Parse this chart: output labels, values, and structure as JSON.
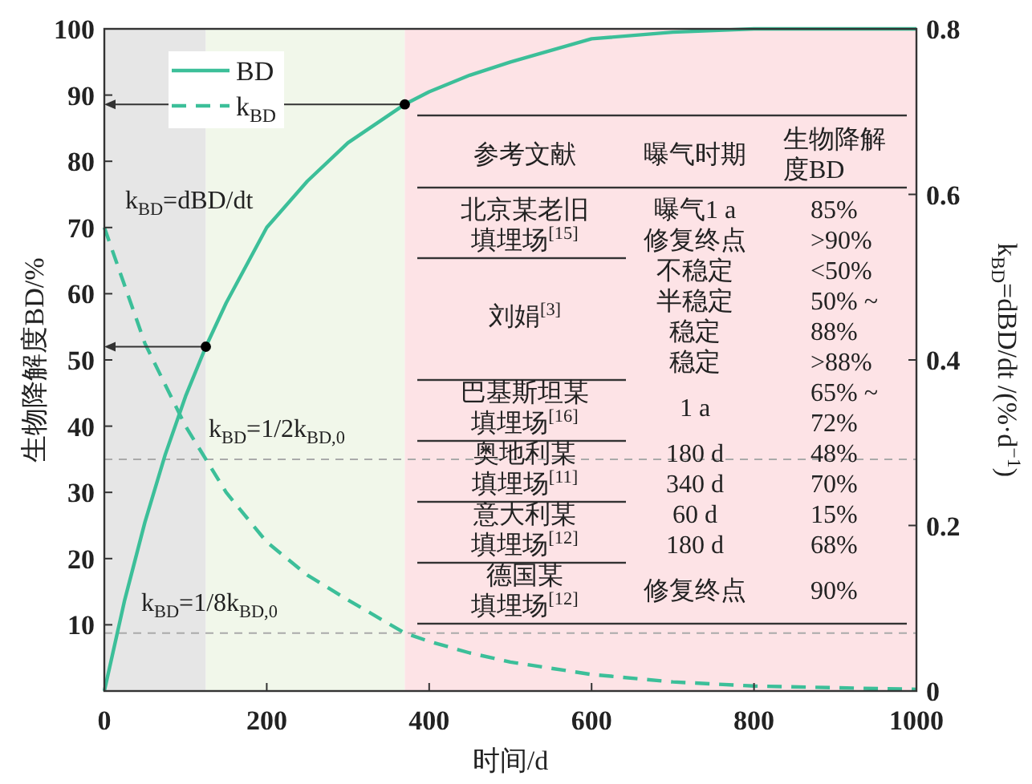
{
  "chart_data": {
    "type": "line",
    "xlabel": "时间/d",
    "ylabel": "生物降解度BD/%",
    "y2label": "k$_{BD}$=dBD/dt /(%·d$^{−1}$)",
    "x": [
      0,
      25,
      50,
      75,
      100,
      125,
      150,
      200,
      250,
      300,
      370,
      400,
      450,
      500,
      600,
      700,
      800,
      1000
    ],
    "xlim": [
      0,
      1000
    ],
    "xticks": [
      0,
      200,
      400,
      600,
      800,
      1000
    ],
    "ylim": [
      0,
      100
    ],
    "yticks": [
      10,
      20,
      30,
      40,
      50,
      60,
      70,
      80,
      90,
      100
    ],
    "y2lim": [
      0,
      0.8
    ],
    "y2ticks": [
      0,
      0.2,
      0.4,
      0.6,
      0.8
    ],
    "series": [
      {
        "name": "BD",
        "color": "#3cbf99",
        "line_style": "solid",
        "values": [
          0,
          13.7,
          25.5,
          35.7,
          44.5,
          52,
          58.6,
          70,
          77,
          82.8,
          88.6,
          90.5,
          93,
          95,
          98.5,
          99.5,
          100,
          100
        ]
      },
      {
        "name": "k$_{BD}$",
        "color": "#3cbf99",
        "line_style": "dashed",
        "axis": "y2",
        "values": [
          0.56,
          0.49,
          0.42,
          0.37,
          0.32,
          0.28,
          0.24,
          0.18,
          0.14,
          0.11,
          0.07,
          0.06,
          0.046,
          0.035,
          0.02,
          0.011,
          0.006,
          0.002
        ]
      },
      {
        "type": "scatter",
        "color": "#000000",
        "marker": "circle",
        "x": [
          125,
          370
        ],
        "values": [
          52,
          88.6
        ]
      }
    ],
    "bands": [
      {
        "axis": "x",
        "from": 0,
        "to": 125,
        "color": "#e6e6e6"
      },
      {
        "axis": "x",
        "from": 125,
        "to": 370,
        "color": "#f1f7ea"
      },
      {
        "axis": "x",
        "from": 370,
        "to": 1000,
        "color": "#fde3e6"
      }
    ],
    "ref_lines": [
      {
        "axis": "y2",
        "value": 0.28,
        "label": "k$_{BD}$=1/2k$_{BD,0}$",
        "color": "#aaaaaa",
        "line_style": "dashed"
      },
      {
        "axis": "y2",
        "value": 0.07,
        "label": "k$_{BD}$=1/8k$_{BD,0}$",
        "color": "#aaaaaa",
        "line_style": "dashed"
      }
    ],
    "legend": "top left",
    "annotations": [
      "k$_{BD}$=dBD/dt",
      "参考文献",
      "曝气时期",
      "生物降解度BD",
      "北京某老旧填埋场$^{[15]}$",
      "刘娟$^{[3]}$",
      "巴基斯坦某填埋场$^{[16]}$",
      "奥地利某填埋场$^{[11]}$",
      "意大利某填埋场$^{[12]}$",
      "德国某填埋场$^{[12]}$",
      "曝气1 a",
      "修复终点",
      "不稳定",
      "半稳定",
      "稳定",
      "稳定",
      "1 a",
      "180 d",
      "340 d",
      "60 d",
      "180 d",
      "修复终点",
      "85%",
      ">90%",
      "<50%",
      "50% ~\n88%",
      ">88%",
      "65% ~\n72%",
      "48%",
      "70%",
      "15%",
      "68%",
      "90%"
    ]
  }
}
